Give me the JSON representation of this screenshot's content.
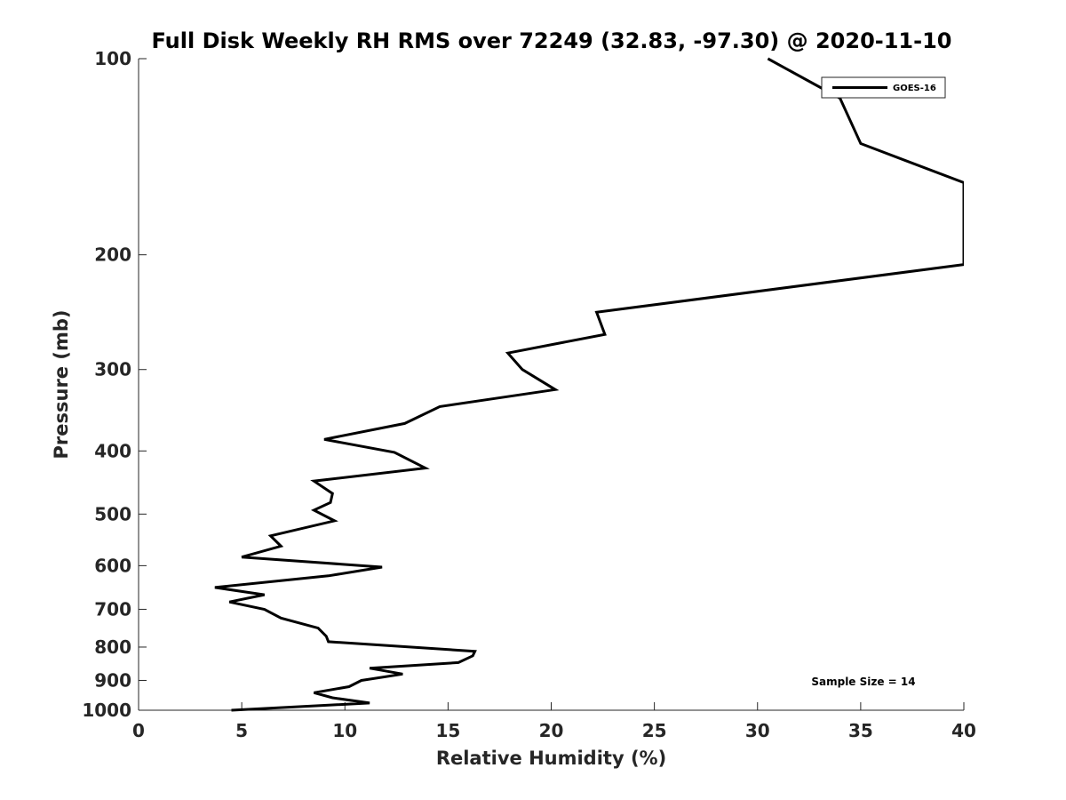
{
  "chart_data": {
    "type": "line",
    "title": "Full Disk Weekly RH RMS over 72249 (32.83, -97.30) @ 2020-11-10",
    "xlabel": "Relative Humidity (%)",
    "ylabel": "Pressure (mb)",
    "xlim": [
      0,
      40
    ],
    "ylim": [
      1000,
      100
    ],
    "yscale": "log",
    "reverse_y": true,
    "grid": false,
    "legend_position": "top-right",
    "x_ticks": [
      "0",
      "5",
      "10",
      "15",
      "20",
      "25",
      "30",
      "35",
      "40"
    ],
    "y_ticks": [
      "100",
      "200",
      "300",
      "400",
      "500",
      "600",
      "700",
      "800",
      "900",
      "1000"
    ],
    "annotation": "Sample Size = 14",
    "series": [
      {
        "name": "GOES-16",
        "color": "#000000",
        "points": [
          [
            30.5,
            100
          ],
          [
            34.0,
            115
          ],
          [
            35.0,
            135
          ],
          [
            40.0,
            155
          ],
          [
            40.0,
            207
          ],
          [
            22.2,
            245
          ],
          [
            22.6,
            265
          ],
          [
            17.9,
            283
          ],
          [
            18.6,
            300
          ],
          [
            20.2,
            322
          ],
          [
            14.6,
            342
          ],
          [
            12.9,
            363
          ],
          [
            9.0,
            384
          ],
          [
            12.4,
            402
          ],
          [
            13.9,
            425
          ],
          [
            8.5,
            445
          ],
          [
            9.4,
            465
          ],
          [
            9.3,
            480
          ],
          [
            8.5,
            493
          ],
          [
            9.5,
            512
          ],
          [
            6.4,
            540
          ],
          [
            6.9,
            560
          ],
          [
            5.0,
            582
          ],
          [
            11.8,
            603
          ],
          [
            9.2,
            622
          ],
          [
            3.7,
            648
          ],
          [
            6.1,
            665
          ],
          [
            4.4,
            682
          ],
          [
            6.1,
            700
          ],
          [
            6.9,
            722
          ],
          [
            8.7,
            748
          ],
          [
            9.1,
            770
          ],
          [
            9.2,
            785
          ],
          [
            16.3,
            812
          ],
          [
            16.2,
            825
          ],
          [
            15.5,
            845
          ],
          [
            11.2,
            862
          ],
          [
            12.8,
            880
          ],
          [
            10.8,
            900
          ],
          [
            10.2,
            920
          ],
          [
            8.5,
            940
          ],
          [
            9.4,
            957
          ],
          [
            11.2,
            975
          ],
          [
            4.5,
            1000
          ]
        ]
      }
    ]
  }
}
